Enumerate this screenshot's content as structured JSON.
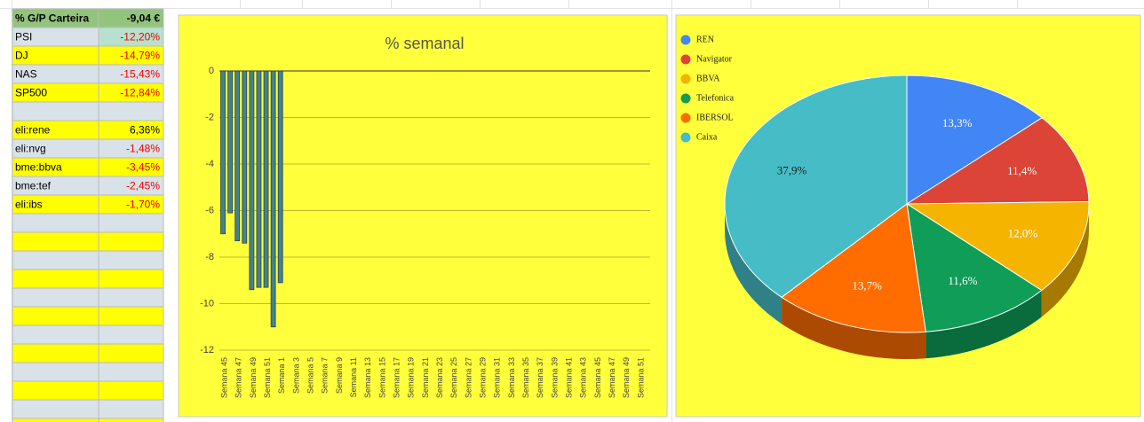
{
  "table": {
    "header": [
      "% G/P Carteira",
      "-9,04 €"
    ],
    "rows": [
      [
        "PSI",
        "-12,20%"
      ],
      [
        "DJ",
        "-14,79%"
      ],
      [
        "NAS",
        "-15,43%"
      ],
      [
        "SP500",
        "-12,84%"
      ],
      [
        "eli:rene",
        "6,36%"
      ],
      [
        "eli:nvg",
        "-1,48%"
      ],
      [
        "bme:bbva",
        "-3,45%"
      ],
      [
        "bme:tef",
        "-2,45%"
      ],
      [
        "eli:ibs",
        "-1,70%"
      ]
    ]
  },
  "chart_data": [
    {
      "type": "bar",
      "title": "% semanal",
      "color": "#45818e",
      "categories": [
        "Semana 45",
        null,
        "Semana 47",
        null,
        "Semana 49",
        null,
        "Semana 51",
        null,
        "Semana 1",
        null,
        "Semana 3",
        null,
        "Semana 5",
        null,
        "Semana 7",
        null,
        "Semana 9",
        null,
        "Semana 11",
        null,
        "Semana 13",
        null,
        "Semana 15",
        null,
        "Semana 17",
        null,
        "Semana 19",
        null,
        "Semana 21",
        null,
        "Semana 23",
        null,
        "Semana 25",
        null,
        "Semana 27",
        null,
        "Semana 29",
        null,
        "Semana 31",
        null,
        "Semana 33",
        null,
        "Semana 35",
        null,
        "Semana 37",
        null,
        "Semana 39",
        null,
        "Semana 41",
        null,
        "Semana 43",
        null,
        "Semana 45",
        null,
        "Semana 47",
        null,
        "Semana 49",
        null,
        "Semana 51",
        null
      ],
      "values": [
        -7,
        -6.1,
        -7.3,
        -7.4,
        -9.4,
        -9.3,
        -9.3,
        -11,
        -9.1,
        null,
        null,
        null,
        null,
        null,
        null,
        null,
        null,
        null,
        null,
        null,
        null,
        null,
        null,
        null,
        null,
        null,
        null,
        null,
        null,
        null,
        null,
        null,
        null,
        null,
        null,
        null,
        null,
        null,
        null,
        null,
        null,
        null,
        null,
        null,
        null,
        null,
        null,
        null,
        null,
        null,
        null,
        null,
        null,
        null,
        null,
        null,
        null,
        null,
        null,
        null
      ],
      "ylim": [
        -12,
        0
      ],
      "yticks": [
        0,
        -2,
        -4,
        -6,
        -8,
        -10,
        -12
      ],
      "grid": true
    },
    {
      "type": "pie",
      "legend": "top-left",
      "categories": [
        "REN",
        "Navigator",
        "BBVA",
        "Telefonica",
        "IBERSOL",
        "Caixa"
      ],
      "values": [
        13.3,
        11.4,
        12.0,
        11.6,
        13.7,
        37.9
      ],
      "value_labels": [
        "13,3%",
        "11,4%",
        "12,0%",
        "11,6%",
        "13,7%",
        "37,9%"
      ],
      "colors": [
        "#4285f4",
        "#db4437",
        "#f4b400",
        "#0f9d58",
        "#ff6d01",
        "#46bdc6"
      ]
    }
  ]
}
